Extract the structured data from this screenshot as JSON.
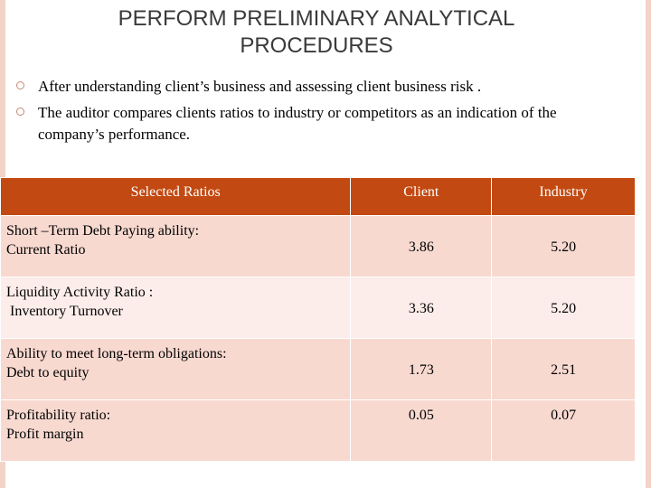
{
  "slide": {
    "title": "PERFORM PRELIMINARY ANALYTICAL PROCEDURES",
    "bullets": [
      "After understanding client’s business and assessing client business risk .",
      "The auditor compares clients ratios to industry or competitors as an indication of the company’s performance."
    ],
    "colors": {
      "header_bg": "#c24a12",
      "row_odd_bg": "#f8d9d0",
      "row_even_bg": "#fcedea",
      "border_accent": "#f3d3c8"
    }
  },
  "table": {
    "headers": [
      "Selected Ratios",
      "Client",
      "Industry"
    ],
    "rows": [
      {
        "category": "Short –Term Debt Paying ability:",
        "ratio": "Current Ratio",
        "client": "3.86",
        "industry": "5.20"
      },
      {
        "category": "Liquidity Activity Ratio :",
        "ratio": " Inventory Turnover",
        "client": "3.36",
        "industry": "5.20"
      },
      {
        "category": "Ability to meet long-term obligations:",
        "ratio": "Debt to equity",
        "client": "1.73",
        "industry": "2.51"
      },
      {
        "category": "Profitability ratio:",
        "ratio": "Profit margin",
        "client": "0.05",
        "industry": "0.07"
      }
    ]
  }
}
